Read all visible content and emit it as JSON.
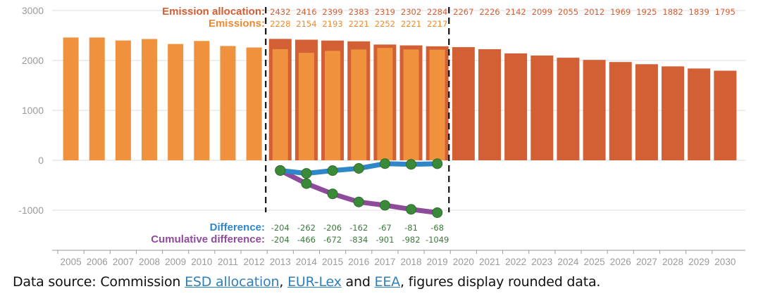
{
  "chart_data": {
    "type": "bar",
    "categories": [
      "2005",
      "2006",
      "2007",
      "2008",
      "2009",
      "2010",
      "2011",
      "2012",
      "2013",
      "2014",
      "2015",
      "2016",
      "2017",
      "2018",
      "2019",
      "2020",
      "2021",
      "2022",
      "2023",
      "2024",
      "2025",
      "2026",
      "2027",
      "2028",
      "2029",
      "2030"
    ],
    "ylim": [
      -1200,
      3000
    ],
    "yticks": [
      3000,
      2000,
      1000,
      0,
      -1000
    ],
    "grid": "horizontal",
    "series": [
      {
        "name": "Emission allocation",
        "kind": "bar",
        "color": "#d35f35",
        "label_color": "#d35f35",
        "x": [
          "2013",
          "2014",
          "2015",
          "2016",
          "2017",
          "2018",
          "2019",
          "2020",
          "2021",
          "2022",
          "2023",
          "2024",
          "2025",
          "2026",
          "2027",
          "2028",
          "2029",
          "2030"
        ],
        "values": [
          2432,
          2416,
          2399,
          2383,
          2319,
          2302,
          2284,
          2267,
          2226,
          2142,
          2099,
          2055,
          2012,
          1969,
          1925,
          1882,
          1839,
          1795
        ]
      },
      {
        "name": "Emissions",
        "kind": "bar",
        "color": "#f0913e",
        "label_color": "#ec8a2f",
        "x": [
          "2005",
          "2006",
          "2007",
          "2008",
          "2009",
          "2010",
          "2011",
          "2012",
          "2013",
          "2014",
          "2015",
          "2016",
          "2017",
          "2018",
          "2019"
        ],
        "values": [
          2460,
          2460,
          2400,
          2430,
          2330,
          2390,
          2290,
          2260,
          2228,
          2154,
          2193,
          2221,
          2252,
          2221,
          2217
        ],
        "labeled_x": [
          "2013",
          "2014",
          "2015",
          "2016",
          "2017",
          "2018",
          "2019"
        ]
      },
      {
        "name": "Difference",
        "kind": "line",
        "color": "#2f86c8",
        "label_color": "#2f86c8",
        "x": [
          "2013",
          "2014",
          "2015",
          "2016",
          "2017",
          "2018",
          "2019"
        ],
        "values": [
          -204,
          -262,
          -206,
          -162,
          -67,
          -81,
          -68
        ]
      },
      {
        "name": "Cumulative difference",
        "kind": "line",
        "color": "#8e4b9c",
        "label_color": "#8e4b9c",
        "x": [
          "2013",
          "2014",
          "2015",
          "2016",
          "2017",
          "2018",
          "2019"
        ],
        "values": [
          -204,
          -466,
          -672,
          -834,
          -901,
          -982,
          -1049
        ]
      }
    ],
    "marker_color": "#3a8a3a",
    "marker_edge": "#2b6f2b",
    "value_label_color": "#3a7a3a",
    "period_marks": [
      "2013",
      "2020"
    ]
  },
  "caption": {
    "prefix": "Data source: Commission ",
    "link1": "ESD allocation",
    "sep1": ", ",
    "link2": "EUR-Lex",
    "sep2": " and ",
    "link3": "EEA",
    "suffix": ", figures display rounded data."
  }
}
